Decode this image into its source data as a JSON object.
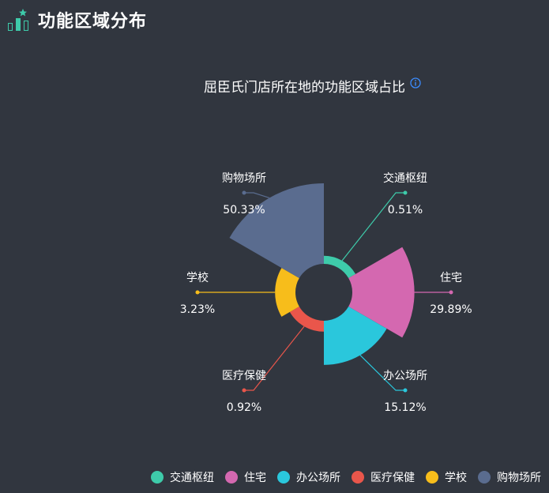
{
  "header": {
    "title": "功能区域分布",
    "icon": "ranking-podium-icon"
  },
  "chart_data": {
    "type": "pie",
    "variant": "rose",
    "title": "屈臣氏门店所在地的功能区域占比",
    "categories": [
      "交通枢纽",
      "住宅",
      "办公场所",
      "医疗保健",
      "学校",
      "购物场所"
    ],
    "values": [
      0.51,
      29.89,
      15.12,
      0.92,
      3.23,
      50.33
    ],
    "labels": [
      "0.51%",
      "29.89%",
      "15.12%",
      "0.92%",
      "3.23%",
      "50.33%"
    ],
    "colors": [
      "#3ecbaa",
      "#d468b0",
      "#2ac7dc",
      "#e9564b",
      "#f7bd1b",
      "#5a6c8f"
    ],
    "unit": "%",
    "legend_position": "bottom-right"
  }
}
